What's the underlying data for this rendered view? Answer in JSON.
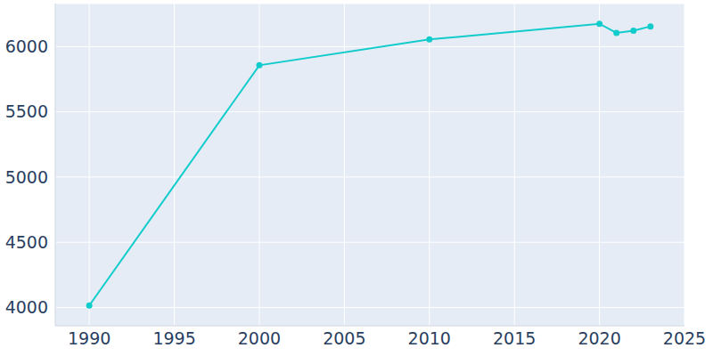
{
  "chart_data": {
    "type": "line",
    "x": [
      1990,
      2000,
      2010,
      2020,
      2021,
      2022,
      2023
    ],
    "values": [
      4015,
      5857,
      6055,
      6175,
      6105,
      6122,
      6155
    ],
    "color": "#12cccc",
    "xlim": [
      1988,
      2025
    ],
    "xticks": [
      1990,
      1995,
      2000,
      2005,
      2010,
      2015,
      2020,
      2025
    ],
    "ylim": [
      3860,
      6330
    ],
    "yticks": [
      4000,
      4500,
      5000,
      5500,
      6000
    ],
    "grid": true,
    "marker": "circle"
  }
}
